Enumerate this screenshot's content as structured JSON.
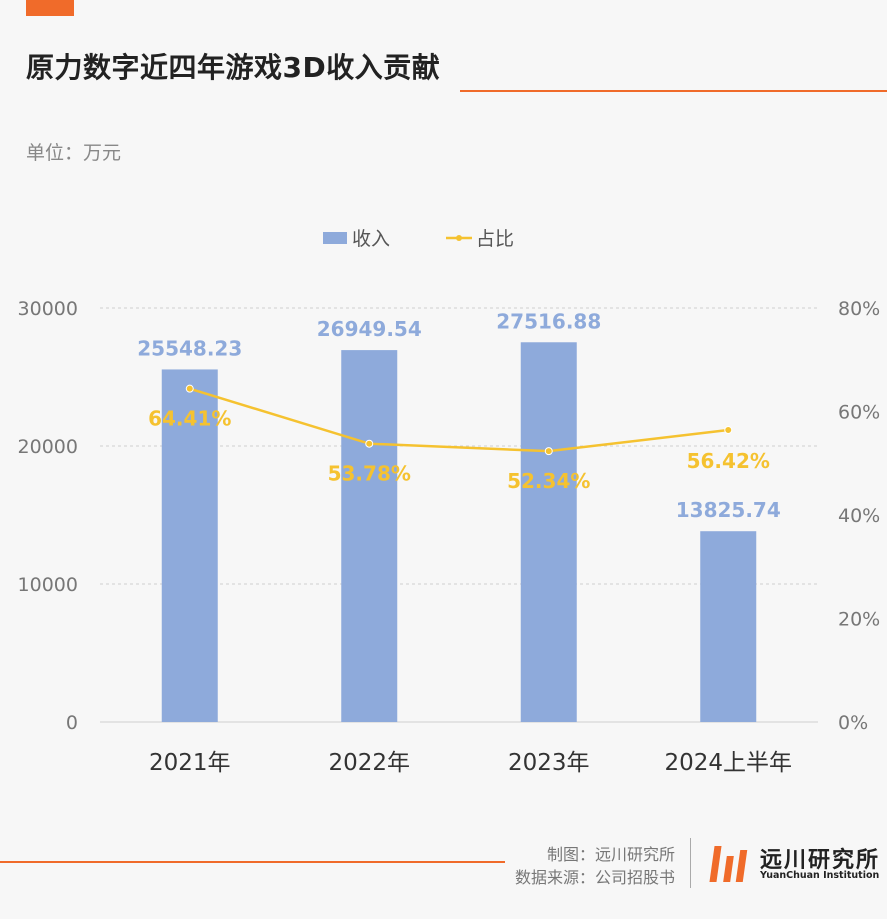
{
  "header": {
    "title": "原力数字近四年游戏3D收入贡献",
    "unit": "单位：万元"
  },
  "footer": {
    "credit_line1": "制图：远川研究所",
    "credit_line2": "数据来源：公司招股书",
    "logo_cn": "远川研究所",
    "logo_en": "YuanChuan Institution"
  },
  "colors": {
    "accent": "#f06b2a",
    "bar": "#8eaadb",
    "line": "#f5c230"
  },
  "chart_data": {
    "type": "bar",
    "categories": [
      "2021年",
      "2022年",
      "2023年",
      "2024上半年"
    ],
    "series": [
      {
        "name": "收入",
        "type": "bar",
        "axis": "left",
        "values": [
          25548.23,
          26949.54,
          27516.88,
          13825.74
        ],
        "labels": [
          "25548.23",
          "26949.54",
          "27516.88",
          "13825.74"
        ]
      },
      {
        "name": "占比",
        "type": "line",
        "axis": "right",
        "values": [
          64.41,
          53.78,
          52.34,
          56.42
        ],
        "labels": [
          "64.41%",
          "53.78%",
          "52.34%",
          "56.42%"
        ]
      }
    ],
    "ylim": [
      0,
      30000
    ],
    "yticks": [
      "0",
      "10000",
      "20000",
      "30000"
    ],
    "y2lim": [
      0,
      80
    ],
    "y2ticks": [
      "0%",
      "20%",
      "40%",
      "60%",
      "80%"
    ],
    "grid": true,
    "legend": "top-center"
  }
}
